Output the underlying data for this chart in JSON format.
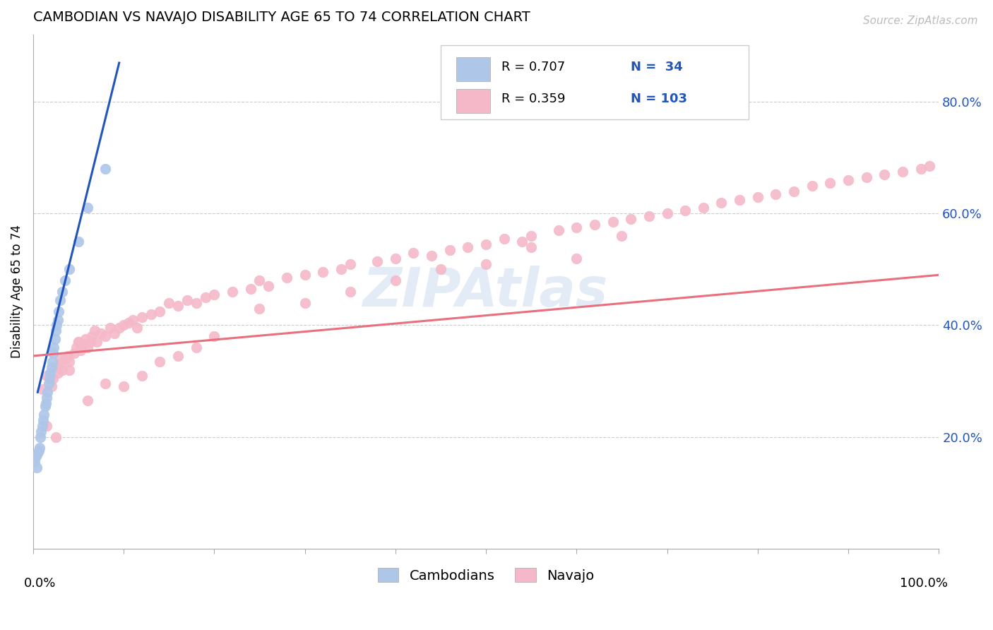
{
  "title": "CAMBODIAN VS NAVAJO DISABILITY AGE 65 TO 74 CORRELATION CHART",
  "source": "Source: ZipAtlas.com",
  "ylabel": "Disability Age 65 to 74",
  "legend_cambodians_r": "R = 0.707",
  "legend_cambodians_n": "N =  34",
  "legend_navajo_r": "R = 0.359",
  "legend_navajo_n": "N = 103",
  "legend_label_cambodians": "Cambodians",
  "legend_label_navajo": "Navajo",
  "cambodian_color": "#aec6e8",
  "navajo_color": "#f5b8c8",
  "cambodian_line_color": "#2255bb",
  "navajo_line_color": "#e8707e",
  "background_color": "#ffffff",
  "grid_color": "#cccccc",
  "xlim": [
    0.0,
    1.0
  ],
  "ylim": [
    0.0,
    0.92
  ],
  "yticks": [
    0.0,
    0.2,
    0.4,
    0.6,
    0.8
  ],
  "ytick_labels": [
    "",
    "20.0%",
    "40.0%",
    "60.0%",
    "80.0%"
  ],
  "cambodian_x": [
    0.002,
    0.003,
    0.004,
    0.005,
    0.006,
    0.007,
    0.008,
    0.009,
    0.01,
    0.011,
    0.012,
    0.013,
    0.014,
    0.015,
    0.016,
    0.017,
    0.018,
    0.019,
    0.02,
    0.021,
    0.022,
    0.023,
    0.024,
    0.025,
    0.026,
    0.027,
    0.028,
    0.03,
    0.032,
    0.035,
    0.04,
    0.05,
    0.06,
    0.08
  ],
  "cambodian_y": [
    0.155,
    0.165,
    0.145,
    0.17,
    0.175,
    0.18,
    0.2,
    0.21,
    0.22,
    0.23,
    0.24,
    0.255,
    0.26,
    0.27,
    0.28,
    0.295,
    0.305,
    0.315,
    0.325,
    0.335,
    0.35,
    0.36,
    0.375,
    0.39,
    0.4,
    0.41,
    0.425,
    0.445,
    0.46,
    0.48,
    0.5,
    0.55,
    0.61,
    0.68
  ],
  "navajo_x": [
    0.01,
    0.015,
    0.02,
    0.022,
    0.025,
    0.027,
    0.03,
    0.032,
    0.035,
    0.038,
    0.04,
    0.045,
    0.048,
    0.05,
    0.052,
    0.055,
    0.058,
    0.06,
    0.063,
    0.065,
    0.068,
    0.07,
    0.075,
    0.08,
    0.085,
    0.09,
    0.095,
    0.1,
    0.105,
    0.11,
    0.115,
    0.12,
    0.13,
    0.14,
    0.15,
    0.16,
    0.17,
    0.18,
    0.19,
    0.2,
    0.22,
    0.24,
    0.25,
    0.26,
    0.28,
    0.3,
    0.32,
    0.34,
    0.35,
    0.38,
    0.4,
    0.42,
    0.44,
    0.46,
    0.48,
    0.5,
    0.52,
    0.54,
    0.55,
    0.58,
    0.6,
    0.62,
    0.64,
    0.66,
    0.68,
    0.7,
    0.72,
    0.74,
    0.76,
    0.78,
    0.8,
    0.82,
    0.84,
    0.86,
    0.88,
    0.9,
    0.92,
    0.94,
    0.96,
    0.98,
    0.99,
    0.015,
    0.025,
    0.03,
    0.04,
    0.05,
    0.06,
    0.08,
    0.1,
    0.12,
    0.14,
    0.16,
    0.18,
    0.2,
    0.25,
    0.3,
    0.35,
    0.4,
    0.45,
    0.5,
    0.55,
    0.6,
    0.65
  ],
  "navajo_y": [
    0.285,
    0.31,
    0.29,
    0.305,
    0.325,
    0.315,
    0.33,
    0.32,
    0.34,
    0.345,
    0.335,
    0.35,
    0.36,
    0.37,
    0.355,
    0.365,
    0.375,
    0.36,
    0.37,
    0.38,
    0.39,
    0.37,
    0.385,
    0.38,
    0.395,
    0.385,
    0.395,
    0.4,
    0.405,
    0.41,
    0.395,
    0.415,
    0.42,
    0.425,
    0.44,
    0.435,
    0.445,
    0.44,
    0.45,
    0.455,
    0.46,
    0.465,
    0.48,
    0.47,
    0.485,
    0.49,
    0.495,
    0.5,
    0.51,
    0.515,
    0.52,
    0.53,
    0.525,
    0.535,
    0.54,
    0.545,
    0.555,
    0.55,
    0.56,
    0.57,
    0.575,
    0.58,
    0.585,
    0.59,
    0.595,
    0.6,
    0.605,
    0.61,
    0.62,
    0.625,
    0.63,
    0.635,
    0.64,
    0.65,
    0.655,
    0.66,
    0.665,
    0.67,
    0.675,
    0.68,
    0.685,
    0.22,
    0.2,
    0.34,
    0.32,
    0.37,
    0.265,
    0.295,
    0.29,
    0.31,
    0.335,
    0.345,
    0.36,
    0.38,
    0.43,
    0.44,
    0.46,
    0.48,
    0.5,
    0.51,
    0.54,
    0.52,
    0.56
  ],
  "cambodian_line_x": [
    0.005,
    0.095
  ],
  "cambodian_line_y": [
    0.28,
    0.87
  ],
  "navajo_line_x": [
    0.0,
    1.0
  ],
  "navajo_line_y": [
    0.345,
    0.49
  ],
  "watermark_color": "#d0dff0",
  "watermark_alpha": 0.6
}
